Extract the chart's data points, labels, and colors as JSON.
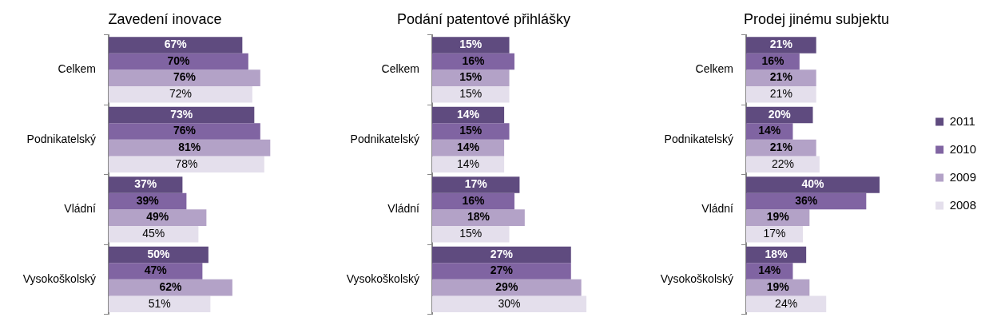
{
  "chart_data": [
    {
      "type": "bar",
      "orientation": "horizontal",
      "title": "Zavedení inovace",
      "categories": [
        "Celkem",
        "Podnikatelský",
        "Vládní",
        "Vysokoškolský"
      ],
      "series": [
        {
          "color": "#5f4b7f",
          "values": [
            67,
            73,
            37,
            50
          ],
          "value_labels": [
            "67%",
            "73%",
            "37%",
            "50%"
          ]
        },
        {
          "color": "#8064a2",
          "values": [
            70,
            76,
            39,
            47
          ],
          "value_labels": [
            "70%",
            "76%",
            "39%",
            "47%"
          ]
        },
        {
          "color": "#b3a2c7",
          "values": [
            76,
            81,
            49,
            62
          ],
          "value_labels": [
            "76%",
            "81%",
            "49%",
            "62%"
          ]
        },
        {
          "color": "#e4dfec",
          "values": [
            72,
            78,
            45,
            51
          ],
          "value_labels": [
            "72%",
            "78%",
            "45%",
            "51%"
          ]
        }
      ],
      "legend": false
    },
    {
      "type": "bar",
      "orientation": "horizontal",
      "title": "Podání patentové přihlášky",
      "categories": [
        "Celkem",
        "Podnikatelský",
        "Vládní",
        "Vysokoškolský"
      ],
      "series": [
        {
          "color": "#5f4b7f",
          "values": [
            15,
            14,
            17,
            27
          ],
          "value_labels": [
            "15%",
            "14%",
            "17%",
            "27%"
          ]
        },
        {
          "color": "#8064a2",
          "values": [
            16,
            15,
            16,
            27
          ],
          "value_labels": [
            "16%",
            "15%",
            "16%",
            "27%"
          ]
        },
        {
          "color": "#b3a2c7",
          "values": [
            15,
            14,
            18,
            29
          ],
          "value_labels": [
            "15%",
            "14%",
            "18%",
            "29%"
          ]
        },
        {
          "color": "#e4dfec",
          "values": [
            15,
            14,
            15,
            30
          ],
          "value_labels": [
            "15%",
            "14%",
            "15%",
            "30%"
          ]
        }
      ],
      "legend": false
    },
    {
      "type": "bar",
      "orientation": "horizontal",
      "title": "Prodej jinému subjektu",
      "categories": [
        "Celkem",
        "Podnikatelský",
        "Vládní",
        "Vysokoškolský"
      ],
      "series": [
        {
          "name": "2011",
          "color": "#5f4b7f",
          "values": [
            21,
            20,
            40,
            18
          ],
          "value_labels": [
            "21%",
            "20%",
            "40%",
            "18%"
          ]
        },
        {
          "name": "2010",
          "color": "#8064a2",
          "values": [
            16,
            14,
            36,
            14
          ],
          "value_labels": [
            "16%",
            "14%",
            "36%",
            "14%"
          ]
        },
        {
          "name": "2009",
          "color": "#b3a2c7",
          "values": [
            21,
            21,
            19,
            19
          ],
          "value_labels": [
            "21%",
            "21%",
            "19%",
            "19%"
          ]
        },
        {
          "name": "2008",
          "color": "#e4dfec",
          "values": [
            21,
            22,
            17,
            24
          ],
          "value_labels": [
            "21%",
            "22%",
            "17%",
            "24%"
          ]
        }
      ],
      "legend": "right"
    }
  ]
}
